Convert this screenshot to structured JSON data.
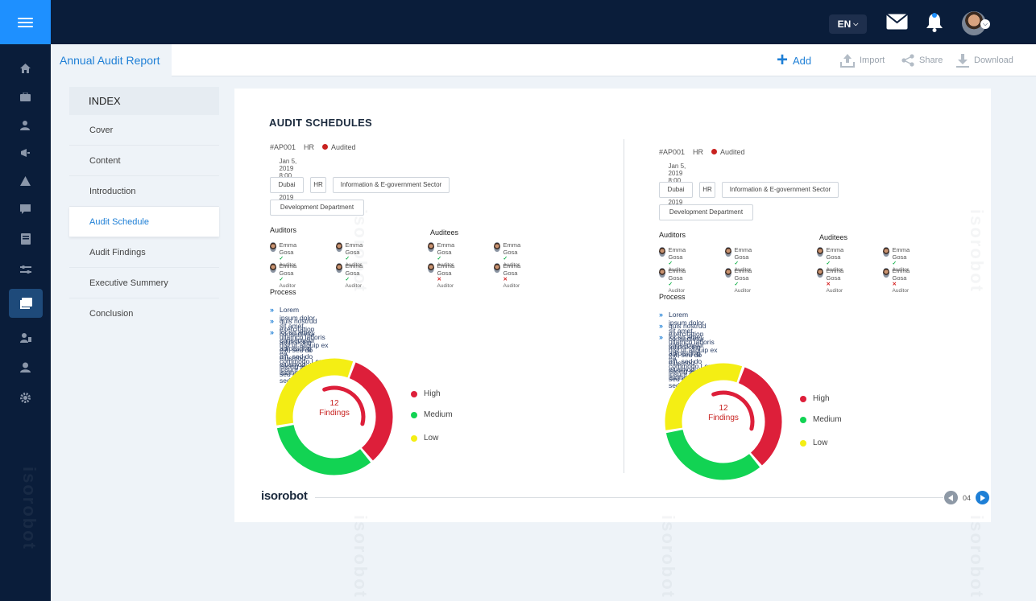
{
  "header": {
    "language": "EN"
  },
  "tab": {
    "title": "Annual Audit Report"
  },
  "actions": {
    "add": "Add",
    "import": "Import",
    "share": "Share",
    "download": "Download"
  },
  "index": {
    "heading": "INDEX",
    "items": [
      "Cover",
      "Content",
      "Introduction",
      "Audit Schedule",
      "Audit Findings",
      "Executive Summery",
      "Conclusion"
    ],
    "active": "Audit Schedule"
  },
  "card": {
    "title": "AUDIT SCHEDULES",
    "watermark": "isorobot",
    "schedules": [
      {
        "id": "#AP001",
        "dept": "HR",
        "status": "Audited",
        "date": "Jan 5, 2019 8:00 AM To Jan 10, 2019 12:00 PM",
        "tags": [
          "Dubai",
          "HR",
          "Information & E-government Sector",
          "Development Department"
        ],
        "auditors_label": "Auditors",
        "auditees_label": "Auditees",
        "person_name": "Emma Gosa",
        "role": "Auditor",
        "process_label": "Process",
        "process": [
          "Lorem ipsum dolor sit amet, consectetur adipisicing elit, sed do eiusmod isicing elit, sed do e",
          "quis nostrud exercitation ullamco laboris nisi ut aliquip ex ea commodo.Lorem ipsum do",
          "lor sit amet, consectetur adipisicing elit, sed do eiusmod isicing elit, sed do e"
        ],
        "donut": {
          "count": "12",
          "label": "Findings"
        }
      }
    ],
    "legend": [
      "High",
      "Medium",
      "Low"
    ],
    "footer": {
      "brand": "isorobot",
      "page": "04"
    }
  },
  "chart_data": {
    "type": "pie",
    "categories": [
      "High",
      "Medium",
      "Low"
    ],
    "values": [
      4,
      4,
      4
    ],
    "colors": [
      "#dd1f3a",
      "#12d353",
      "#f4ee14"
    ],
    "center_text": "12 Findings"
  },
  "colors": {
    "accent": "#1e90ff",
    "navy": "#0a1d3a",
    "high": "#dd1f3a",
    "medium": "#12d353",
    "low": "#f4ee14"
  }
}
